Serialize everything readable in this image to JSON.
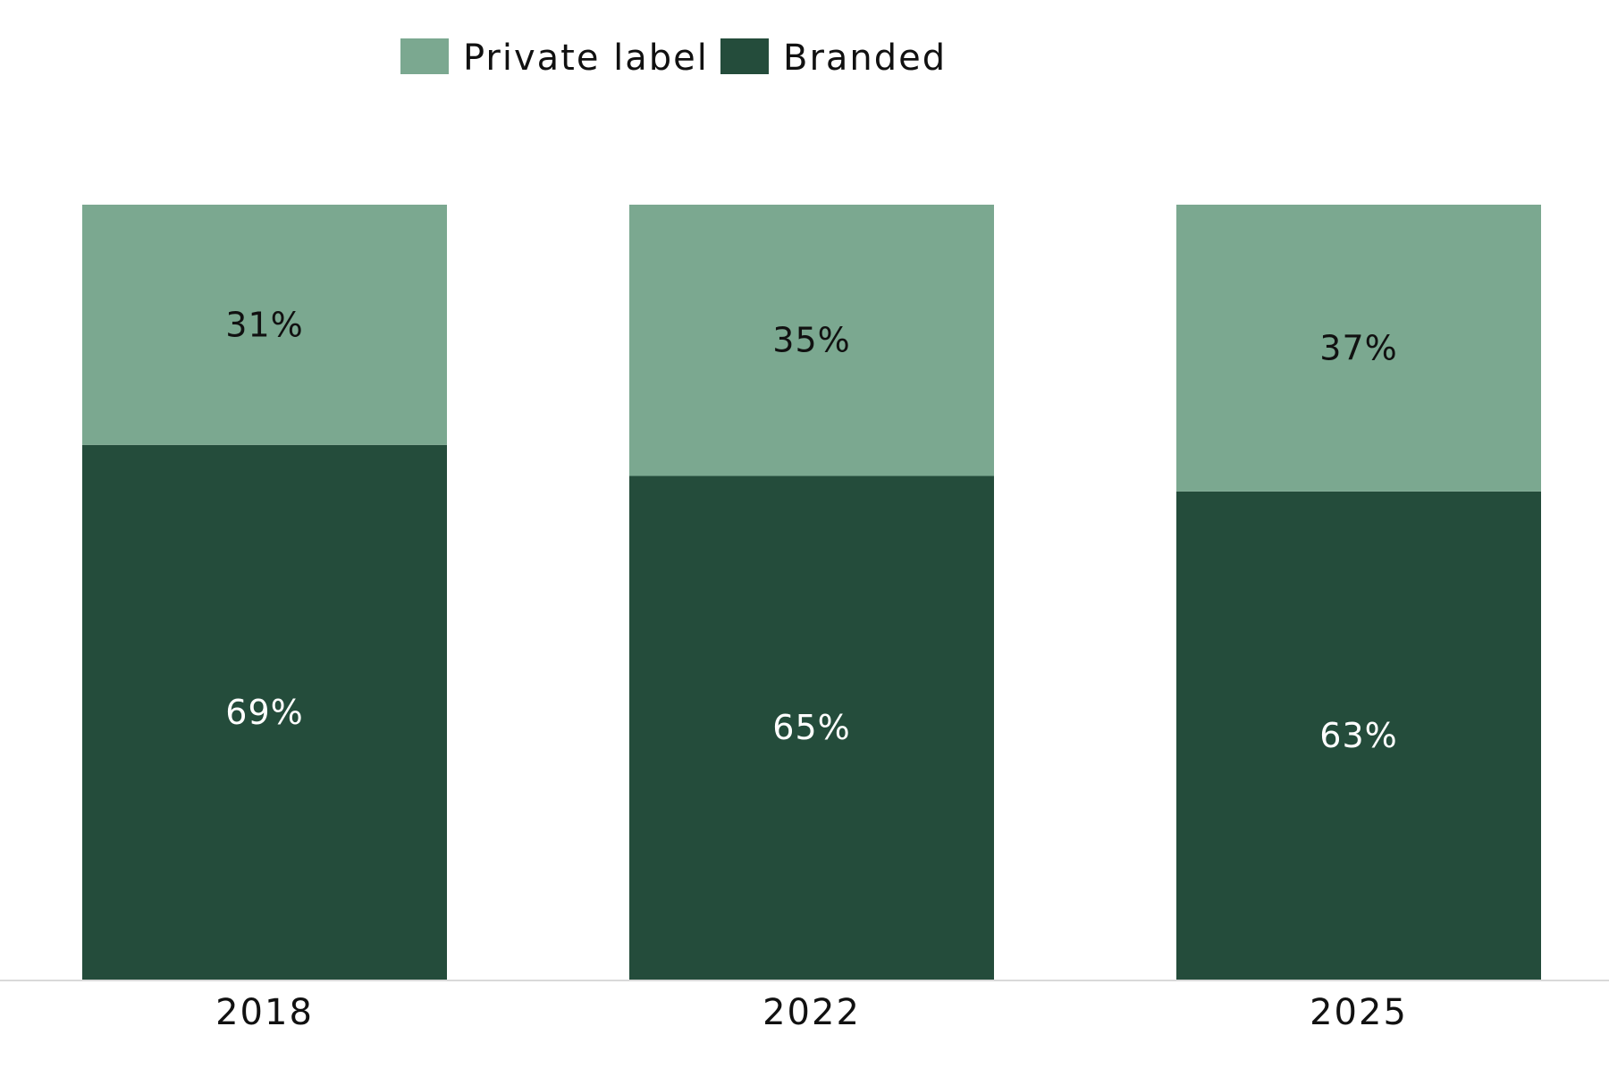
{
  "chart_data": {
    "type": "bar",
    "stacked": true,
    "categories": [
      "2018",
      "2022",
      "2025"
    ],
    "series": [
      {
        "name": "Branded",
        "values": [
          69,
          65,
          63
        ],
        "labels": [
          "69%",
          "65%",
          "63%"
        ],
        "color": "#244c3b",
        "label_color": "#ffffff"
      },
      {
        "name": "Private label",
        "values": [
          31,
          35,
          37
        ],
        "labels": [
          "31%",
          "35%",
          "37%"
        ],
        "color": "#7ba890",
        "label_color": "#111111"
      }
    ],
    "legend": {
      "position": "top-center",
      "order": [
        "Private label",
        "Branded"
      ]
    },
    "ylim": [
      0,
      100
    ],
    "grid": false,
    "axis_color": "#d9d9d9"
  }
}
